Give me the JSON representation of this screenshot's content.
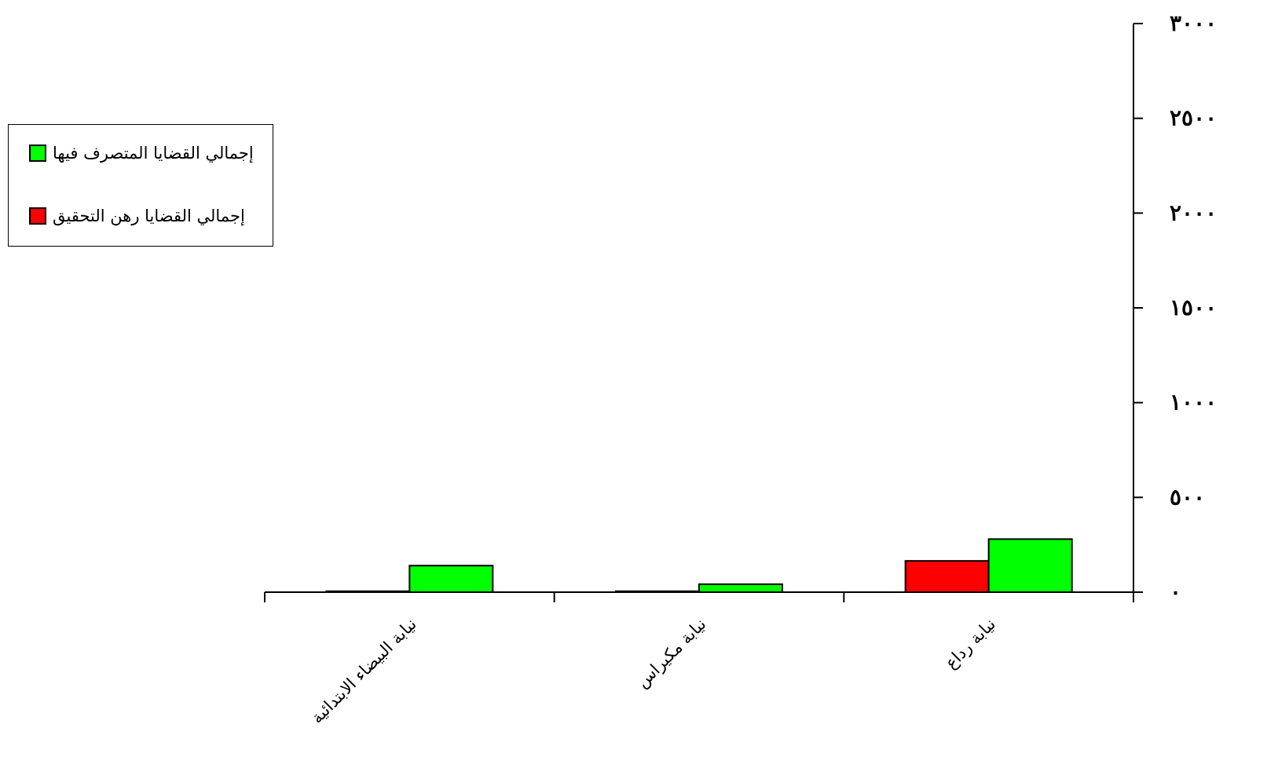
{
  "chart_data": {
    "type": "bar",
    "categories": [
      "نيابة رداع",
      "نيابة مكيراس",
      "نيابة البيضاء الابتدائية"
    ],
    "series": [
      {
        "name": "إجمالي القضايا رهن التحقيق",
        "color": "#ff0000",
        "values": [
          165,
          5,
          5
        ]
      },
      {
        "name": "إجمالي القضايا المتصرف فيها",
        "color": "#00ff00",
        "values": [
          280,
          42,
          140
        ]
      }
    ],
    "ylim": [
      0,
      3000
    ],
    "yticks": [
      0,
      500,
      1000,
      1500,
      2000,
      2500,
      3000
    ],
    "ytick_labels": [
      "٠",
      "٥٠٠",
      "١٠٠٠",
      "١٥٠٠",
      "٢٠٠٠",
      "٢٥٠٠",
      "٣٠٠٠"
    ],
    "y_axis_side": "right",
    "category_order": "right-to-left",
    "x_label_rotation": "diagonal",
    "legend": {
      "placement": "left",
      "order": [
        "إجمالي القضايا المتصرف فيها",
        "إجمالي القضايا رهن التحقيق"
      ]
    },
    "grid": false,
    "title": "",
    "xlabel": "",
    "ylabel": ""
  }
}
